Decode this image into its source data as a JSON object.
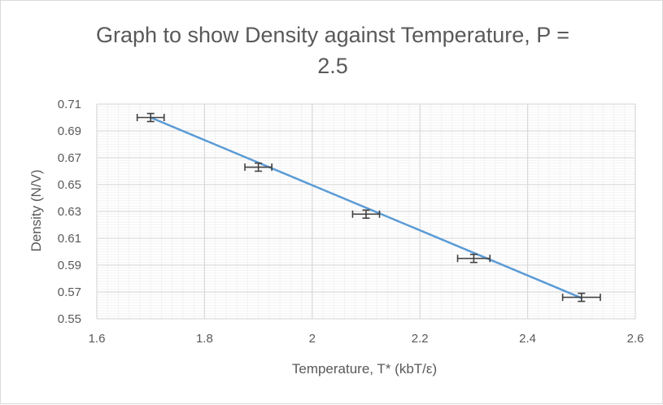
{
  "chart_data": {
    "type": "scatter",
    "title_lines": [
      "Graph to show Density against Temperature, P =",
      "2.5"
    ],
    "xlabel": "Temperature, T* (kbT/ε)",
    "ylabel": "Density (N/V)",
    "xlim": [
      1.6,
      2.6
    ],
    "ylim": [
      0.55,
      0.71
    ],
    "x_ticks": [
      1.6,
      1.8,
      2.0,
      2.2,
      2.4,
      2.6
    ],
    "x_tick_labels": [
      "1.6",
      "1.8",
      "2",
      "2.2",
      "2.4",
      "2.6"
    ],
    "y_ticks": [
      0.55,
      0.57,
      0.59,
      0.61,
      0.63,
      0.65,
      0.67,
      0.69,
      0.71
    ],
    "y_tick_labels": [
      "0.55",
      "0.57",
      "0.59",
      "0.61",
      "0.63",
      "0.65",
      "0.67",
      "0.69",
      "0.71"
    ],
    "minor_x_step": 0.02,
    "minor_y_step": 0.002,
    "grid": true,
    "series": [
      {
        "name": "Density",
        "x": [
          1.7,
          1.9,
          2.1,
          2.3,
          2.5
        ],
        "y": [
          0.7,
          0.663,
          0.628,
          0.595,
          0.566
        ],
        "x_err": [
          0.025,
          0.025,
          0.025,
          0.03,
          0.035
        ],
        "y_err": [
          0.003,
          0.003,
          0.003,
          0.003,
          0.003
        ]
      }
    ],
    "trendline": {
      "type": "linear",
      "x": [
        1.7,
        2.5
      ],
      "y": [
        0.7,
        0.5655
      ]
    },
    "colors": {
      "trendline": "#5b9bd5",
      "error_bar": "#404040",
      "grid_major": "#d9d9d9",
      "grid_minor": "#f0f0f0",
      "text": "#595959"
    }
  }
}
